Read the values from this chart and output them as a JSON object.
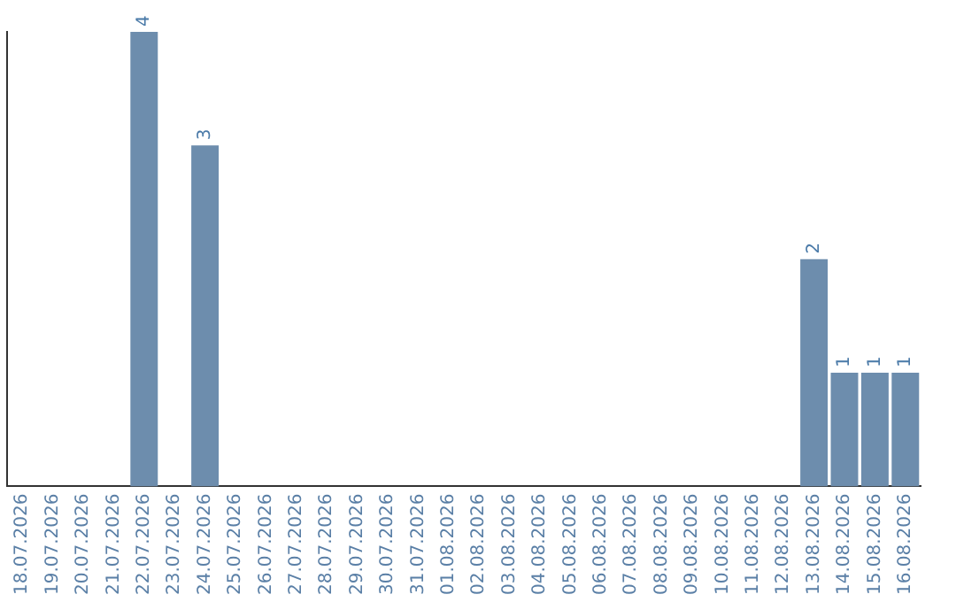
{
  "chart_data": {
    "type": "bar",
    "categories": [
      "18.07.2026",
      "19.07.2026",
      "20.07.2026",
      "21.07.2026",
      "22.07.2026",
      "23.07.2026",
      "24.07.2026",
      "25.07.2026",
      "26.07.2026",
      "27.07.2026",
      "28.07.2026",
      "29.07.2026",
      "30.07.2026",
      "31.07.2026",
      "01.08.2026",
      "02.08.2026",
      "03.08.2026",
      "04.08.2026",
      "05.08.2026",
      "06.08.2026",
      "07.08.2026",
      "08.08.2026",
      "09.08.2026",
      "10.08.2026",
      "11.08.2026",
      "12.08.2026",
      "13.08.2026",
      "14.08.2026",
      "15.08.2026",
      "16.08.2026"
    ],
    "values": [
      null,
      null,
      null,
      null,
      4,
      null,
      3,
      null,
      null,
      null,
      null,
      null,
      null,
      null,
      null,
      null,
      null,
      null,
      null,
      null,
      null,
      null,
      null,
      null,
      null,
      null,
      2,
      1,
      1,
      1
    ],
    "color": "#6d8dad",
    "data_labels": true,
    "grid": false,
    "legend": false
  }
}
